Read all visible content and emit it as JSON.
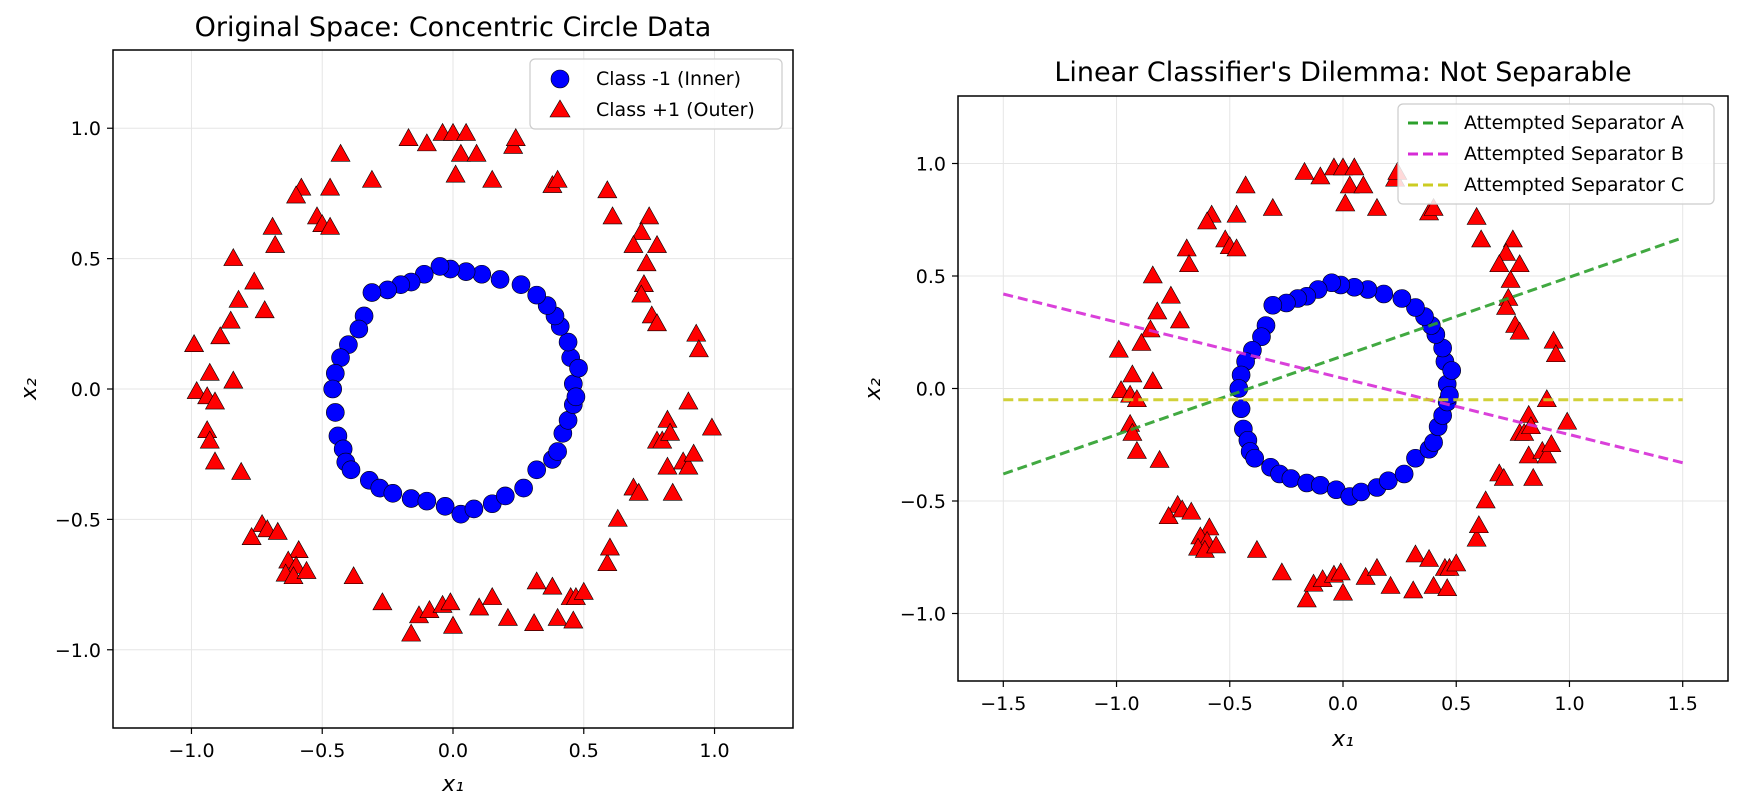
{
  "colors": {
    "inner": "#0000ff",
    "outer": "#ff0000",
    "marker_edge": "#000000",
    "grid": "#e6e6e6",
    "legend_border": "#cccccc"
  },
  "chart_data": [
    {
      "type": "scatter",
      "title": "Original Space: Concentric Circle Data",
      "xlabel": "x₁",
      "ylabel": "x₂",
      "xlim": [
        -1.3,
        1.3
      ],
      "ylim": [
        -1.3,
        1.3
      ],
      "xticks": [
        -1.0,
        -0.5,
        0.0,
        0.5,
        1.0
      ],
      "yticks": [
        -1.0,
        -0.5,
        0.0,
        0.5,
        1.0
      ],
      "xtick_labels": [
        "−1.0",
        "−0.5",
        "0.0",
        "0.5",
        "1.0"
      ],
      "ytick_labels": [
        "−1.0",
        "−0.5",
        "0.0",
        "0.5",
        "1.0"
      ],
      "grid": true,
      "legend_position": "top-right",
      "legend": [
        "Class -1 (Inner)",
        "Class +1 (Outer)"
      ],
      "series": [
        {
          "name": "Class -1 (Inner)",
          "marker": "circle",
          "color": "#0000ff",
          "points": [
            [
              0.46,
              0.02
            ],
            [
              0.45,
              0.12
            ],
            [
              0.44,
              0.18
            ],
            [
              0.41,
              0.24
            ],
            [
              0.39,
              0.28
            ],
            [
              0.36,
              0.32
            ],
            [
              0.32,
              0.36
            ],
            [
              0.26,
              0.4
            ],
            [
              0.18,
              0.42
            ],
            [
              0.11,
              0.44
            ],
            [
              0.05,
              0.45
            ],
            [
              -0.01,
              0.46
            ],
            [
              -0.05,
              0.47
            ],
            [
              -0.11,
              0.44
            ],
            [
              -0.16,
              0.41
            ],
            [
              -0.2,
              0.4
            ],
            [
              -0.25,
              0.38
            ],
            [
              -0.31,
              0.37
            ],
            [
              -0.34,
              0.28
            ],
            [
              -0.36,
              0.23
            ],
            [
              -0.4,
              0.17
            ],
            [
              -0.43,
              0.12
            ],
            [
              -0.45,
              0.06
            ],
            [
              -0.46,
              0.0
            ],
            [
              -0.45,
              -0.09
            ],
            [
              -0.44,
              -0.18
            ],
            [
              -0.42,
              -0.23
            ],
            [
              -0.41,
              -0.28
            ],
            [
              -0.39,
              -0.31
            ],
            [
              -0.32,
              -0.35
            ],
            [
              -0.28,
              -0.38
            ],
            [
              -0.23,
              -0.4
            ],
            [
              -0.16,
              -0.42
            ],
            [
              -0.1,
              -0.43
            ],
            [
              -0.03,
              -0.45
            ],
            [
              0.03,
              -0.48
            ],
            [
              0.08,
              -0.46
            ],
            [
              0.15,
              -0.44
            ],
            [
              0.2,
              -0.41
            ],
            [
              0.27,
              -0.38
            ],
            [
              0.32,
              -0.31
            ],
            [
              0.38,
              -0.27
            ],
            [
              0.4,
              -0.24
            ],
            [
              0.42,
              -0.17
            ],
            [
              0.44,
              -0.12
            ],
            [
              0.46,
              -0.06
            ],
            [
              0.48,
              0.08
            ],
            [
              0.47,
              -0.03
            ]
          ]
        },
        {
          "name": "Class +1 (Outer)",
          "marker": "triangle",
          "color": "#ff0000",
          "points": [
            [
              -0.04,
              0.98
            ],
            [
              0.0,
              0.98
            ],
            [
              0.05,
              0.98
            ],
            [
              -0.1,
              0.94
            ],
            [
              0.03,
              0.9
            ],
            [
              0.09,
              0.9
            ],
            [
              0.01,
              0.82
            ],
            [
              0.15,
              0.8
            ],
            [
              -0.31,
              0.8
            ],
            [
              -0.17,
              0.96
            ],
            [
              0.23,
              0.93
            ],
            [
              0.24,
              0.96
            ],
            [
              0.38,
              0.78
            ],
            [
              0.4,
              0.8
            ],
            [
              0.59,
              0.76
            ],
            [
              0.61,
              0.66
            ],
            [
              0.75,
              0.66
            ],
            [
              0.72,
              0.6
            ],
            [
              0.69,
              0.55
            ],
            [
              0.78,
              0.55
            ],
            [
              0.74,
              0.48
            ],
            [
              0.73,
              0.4
            ],
            [
              0.72,
              0.36
            ],
            [
              0.76,
              0.28
            ],
            [
              0.78,
              0.25
            ],
            [
              -0.43,
              0.9
            ],
            [
              -0.47,
              0.77
            ],
            [
              -0.58,
              0.77
            ],
            [
              -0.6,
              0.74
            ],
            [
              -0.52,
              0.66
            ],
            [
              -0.5,
              0.63
            ],
            [
              -0.47,
              0.62
            ],
            [
              -0.69,
              0.62
            ],
            [
              -0.68,
              0.55
            ],
            [
              -0.84,
              0.5
            ],
            [
              -0.76,
              0.41
            ],
            [
              -0.82,
              0.34
            ],
            [
              -0.72,
              0.3
            ],
            [
              -0.85,
              0.26
            ],
            [
              -0.89,
              0.2
            ],
            [
              -0.99,
              0.17
            ],
            [
              -0.93,
              0.06
            ],
            [
              -0.84,
              0.03
            ],
            [
              -0.98,
              -0.01
            ],
            [
              -0.94,
              -0.03
            ],
            [
              -0.91,
              -0.05
            ],
            [
              -0.94,
              -0.16
            ],
            [
              -0.93,
              -0.2
            ],
            [
              -0.91,
              -0.28
            ],
            [
              -0.81,
              -0.32
            ],
            [
              -0.73,
              -0.52
            ],
            [
              -0.77,
              -0.57
            ],
            [
              -0.71,
              -0.54
            ],
            [
              -0.67,
              -0.55
            ],
            [
              -0.59,
              -0.62
            ],
            [
              -0.63,
              -0.66
            ],
            [
              -0.6,
              -0.68
            ],
            [
              -0.64,
              -0.71
            ],
            [
              -0.61,
              -0.72
            ],
            [
              -0.56,
              -0.7
            ],
            [
              -0.38,
              -0.72
            ],
            [
              -0.27,
              -0.82
            ],
            [
              -0.16,
              -0.94
            ],
            [
              -0.13,
              -0.87
            ],
            [
              -0.09,
              -0.85
            ],
            [
              -0.04,
              -0.83
            ],
            [
              -0.01,
              -0.82
            ],
            [
              0.0,
              -0.91
            ],
            [
              0.1,
              -0.84
            ],
            [
              0.15,
              -0.8
            ],
            [
              0.21,
              -0.88
            ],
            [
              0.31,
              -0.9
            ],
            [
              0.32,
              -0.74
            ],
            [
              0.38,
              -0.76
            ],
            [
              0.4,
              -0.88
            ],
            [
              0.45,
              -0.8
            ],
            [
              0.47,
              -0.8
            ],
            [
              0.46,
              -0.89
            ],
            [
              0.5,
              -0.78
            ],
            [
              0.59,
              -0.67
            ],
            [
              0.6,
              -0.61
            ],
            [
              0.63,
              -0.5
            ],
            [
              0.69,
              -0.38
            ],
            [
              0.71,
              -0.4
            ],
            [
              0.78,
              -0.2
            ],
            [
              0.8,
              -0.2
            ],
            [
              0.82,
              -0.12
            ],
            [
              0.83,
              -0.17
            ],
            [
              0.82,
              -0.3
            ],
            [
              0.84,
              -0.4
            ],
            [
              0.88,
              -0.28
            ],
            [
              0.9,
              -0.3
            ],
            [
              0.92,
              -0.25
            ],
            [
              0.9,
              -0.05
            ],
            [
              0.93,
              0.21
            ],
            [
              0.94,
              0.15
            ],
            [
              0.99,
              -0.15
            ]
          ]
        }
      ]
    },
    {
      "type": "scatter",
      "title": "Linear Classifier's Dilemma: Not Separable",
      "xlabel": "x₁",
      "ylabel": "x₂",
      "xlim": [
        -1.7,
        1.7
      ],
      "ylim": [
        -1.3,
        1.3
      ],
      "xticks": [
        -1.5,
        -1.0,
        -0.5,
        0.0,
        0.5,
        1.0,
        1.5
      ],
      "yticks": [
        -1.0,
        -0.5,
        0.0,
        0.5,
        1.0
      ],
      "xtick_labels": [
        "−1.5",
        "−1.0",
        "−0.5",
        "0.0",
        "0.5",
        "1.0",
        "1.5"
      ],
      "ytick_labels": [
        "−1.0",
        "−0.5",
        "0.0",
        "0.5",
        "1.0"
      ],
      "grid": true,
      "legend_position": "top-right",
      "legend": [
        "Attempted Separator A",
        "Attempted Separator B",
        "Attempted Separator C"
      ],
      "separators": [
        {
          "name": "Attempted Separator A",
          "color": "#2ca02c",
          "x": [
            -1.5,
            1.5
          ],
          "y": [
            -0.38,
            0.67
          ]
        },
        {
          "name": "Attempted Separator B",
          "color": "#d62bd6",
          "x": [
            -1.5,
            1.5
          ],
          "y": [
            0.42,
            -0.33
          ]
        },
        {
          "name": "Attempted Separator C",
          "color": "#cccc22",
          "x": [
            -1.5,
            1.5
          ],
          "y": [
            -0.05,
            -0.05
          ]
        }
      ]
    }
  ]
}
